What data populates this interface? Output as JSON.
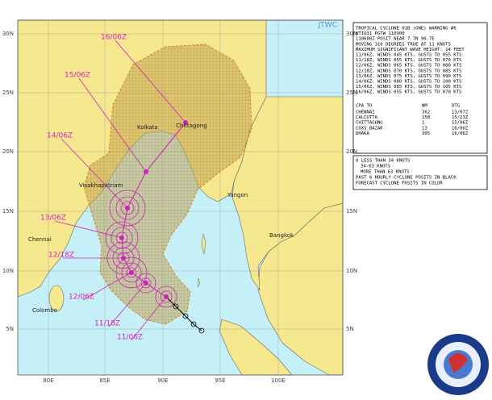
{
  "header": {
    "agency": "JTWC"
  },
  "axes": {
    "lat_labels": [
      "30N",
      "25N",
      "20N",
      "15N",
      "10N",
      "5N"
    ],
    "lon_labels": [
      "80E",
      "85E",
      "90E",
      "95E",
      "100E"
    ]
  },
  "cities": [
    "Kolkata",
    "Chittagong",
    "Visakhapatnam",
    "Yangon",
    "Chennai",
    "Bangkok",
    "Colombo"
  ],
  "forecast_labels": [
    "16/06Z",
    "15/06Z",
    "14/06Z",
    "13/06Z",
    "12/18Z",
    "12/06Z",
    "11/18Z",
    "11/06Z"
  ],
  "warning": {
    "lines": [
      "TROPICAL CYCLONE 01B (ONE) WARNING #6",
      "WTIO31 PGTW 110900",
      "110600Z POSIT NEAR 7.7N 90.7E",
      "MOVING 310 DEGREES TRUE AT 11 KNOTS",
      "MAXIMUM SIGNIFICANT WAVE HEIGHT: 14 FEET",
      "11/06Z, WINDS 045 KTS, GUSTS TO 055 KTS",
      "11/18Z, WINDS 055 KTS, GUSTS TO 070 KTS",
      "12/06Z, WINDS 065 KTS, GUSTS TO 080 KTS",
      "12/18Z, WINDS 070 KTS, GUSTS TO 085 KTS",
      "13/06Z, WINDS 075 KTS, GUSTS TO 090 KTS",
      "14/06Z, WINDS 080 KTS, GUSTS TO 100 KTS",
      "15/06Z, WINDS 085 KTS, GUSTS TO 105 KTS",
      "16/06Z, WINDS 055 KTS, GUSTS TO 070 KTS"
    ]
  },
  "cpa": {
    "header": [
      "CPA TO",
      "NM",
      "DTG"
    ],
    "rows": [
      [
        "CHENNAI",
        "362",
        "13/07Z"
      ],
      [
        "CALCUTTA",
        "158",
        "15/23Z"
      ],
      [
        "CHITTAGONG",
        "1",
        "15/06Z"
      ],
      [
        "COXS_BAZAR",
        "13",
        "16/00Z"
      ],
      [
        "DHAKA",
        "305",
        "16/06Z"
      ]
    ]
  },
  "legend": {
    "lines": [
      "O LESS THAN 34 KNOTS",
      "34-63 KNOTS",
      "MORE THAN 63 KNOTS",
      "PAST 6 HOURLY CYCLONE POSITS IN BLACK",
      "FORECAST CYCLONE POSITS IN COLOR"
    ]
  }
}
